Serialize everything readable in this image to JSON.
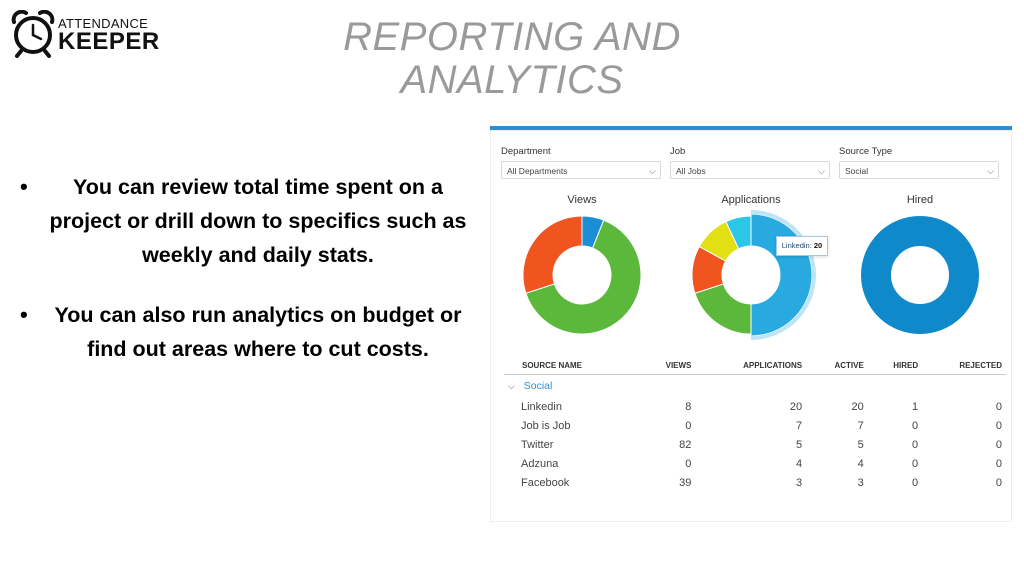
{
  "logo": {
    "line1": "ATTENDANCE",
    "line2": "KEEPER"
  },
  "title": {
    "line1": "REPORTING AND",
    "line2": "ANALYTICS"
  },
  "bullets": [
    "You can review total time spent on a project or drill down to specifics such as weekly and daily stats.",
    "You can also run analytics on budget or find out areas where to cut costs."
  ],
  "filters": {
    "department": {
      "label": "Department",
      "value": "All Departments"
    },
    "job": {
      "label": "Job",
      "value": "All Jobs"
    },
    "source_type": {
      "label": "Source Type",
      "value": "Social"
    }
  },
  "charts": {
    "views": {
      "title": "Views",
      "segments": [
        {
          "value": 6,
          "color": "#1b8ed6"
        },
        {
          "value": 64,
          "color": "#5cb83b"
        },
        {
          "value": 30,
          "color": "#f0541f"
        }
      ]
    },
    "applications": {
      "title": "Applications",
      "segments": [
        {
          "value": 50,
          "color": "#28a9e0"
        },
        {
          "value": 20,
          "color": "#5cb83b"
        },
        {
          "value": 13,
          "color": "#f0541f"
        },
        {
          "value": 10,
          "color": "#e2e013"
        },
        {
          "value": 7,
          "color": "#2cc6e6"
        }
      ],
      "tooltip": {
        "label": "Linkedin:",
        "value": "20"
      }
    },
    "hired": {
      "title": "Hired",
      "segments": [
        {
          "value": 100,
          "color": "#0f89c9"
        }
      ]
    }
  },
  "table": {
    "headers": [
      "SOURCE NAME",
      "VIEWS",
      "APPLICATIONS",
      "ACTIVE",
      "HIRED",
      "REJECTED"
    ],
    "group": "Social",
    "rows": [
      {
        "name": "Linkedin",
        "views": "8",
        "applications": "20",
        "active": "20",
        "hired": "1",
        "rejected": "0"
      },
      {
        "name": "Job is Job",
        "views": "0",
        "applications": "7",
        "active": "7",
        "hired": "0",
        "rejected": "0"
      },
      {
        "name": "Twitter",
        "views": "82",
        "applications": "5",
        "active": "5",
        "hired": "0",
        "rejected": "0"
      },
      {
        "name": "Adzuna",
        "views": "0",
        "applications": "4",
        "active": "4",
        "hired": "0",
        "rejected": "0"
      },
      {
        "name": "Facebook",
        "views": "39",
        "applications": "3",
        "active": "3",
        "hired": "0",
        "rejected": "0"
      }
    ]
  },
  "icons": {
    "logo": "alarm-clock-icon",
    "dropdown": "chevron-down-icon",
    "group": "chevron-down-icon"
  }
}
